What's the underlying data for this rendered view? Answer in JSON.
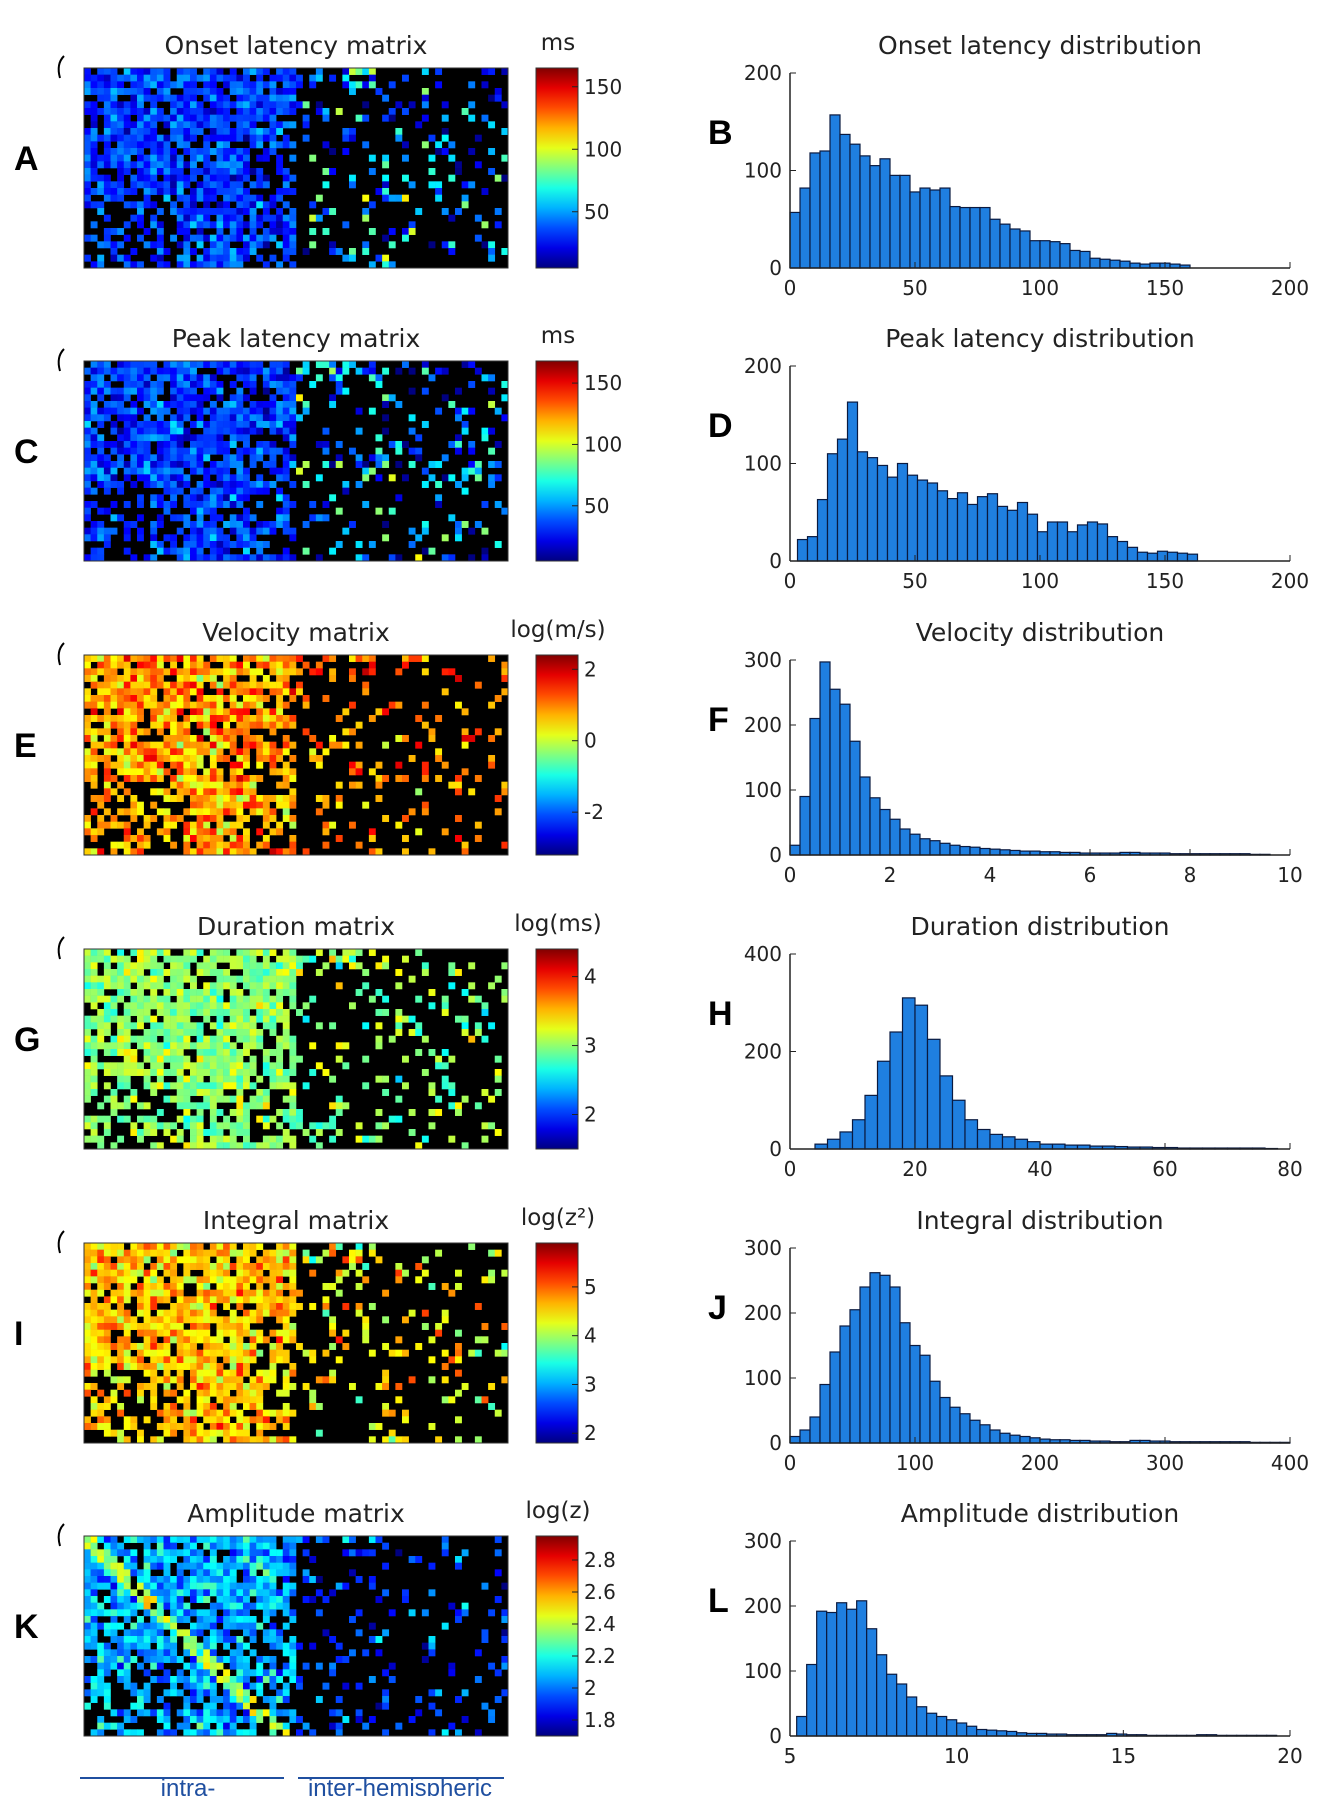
{
  "footer": {
    "left": "intra-",
    "right": "inter-hemispheric"
  },
  "chart_data": [
    {
      "type": "heatmap",
      "letter": "A",
      "title": "Onset latency matrix",
      "unit": "ms",
      "variant": "latency",
      "cmin": 5,
      "cmax": 165,
      "cticks": [
        50,
        100,
        150
      ]
    },
    {
      "type": "bar",
      "letter": "B",
      "title": "Onset latency distribution",
      "xlim": [
        0,
        200
      ],
      "ylim": [
        0,
        200
      ],
      "xticks": [
        0,
        50,
        100,
        150,
        200
      ],
      "yticks": [
        0,
        100,
        200
      ],
      "bin_start": 0,
      "bin_width": 4,
      "values": [
        57,
        82,
        118,
        120,
        157,
        137,
        127,
        115,
        105,
        112,
        95,
        95,
        78,
        82,
        80,
        82,
        63,
        62,
        62,
        62,
        50,
        45,
        40,
        38,
        28,
        28,
        27,
        25,
        18,
        17,
        10,
        9,
        8,
        7,
        5,
        4,
        5,
        5,
        4,
        3
      ]
    },
    {
      "type": "heatmap",
      "letter": "C",
      "title": "Peak latency matrix",
      "unit": "ms",
      "variant": "latency",
      "cmin": 5,
      "cmax": 168,
      "cticks": [
        50,
        100,
        150
      ]
    },
    {
      "type": "bar",
      "letter": "D",
      "title": "Peak latency distribution",
      "xlim": [
        0,
        200
      ],
      "ylim": [
        0,
        200
      ],
      "xticks": [
        0,
        50,
        100,
        150,
        200
      ],
      "yticks": [
        0,
        100,
        200
      ],
      "bin_start": 3,
      "bin_width": 4,
      "values": [
        22,
        25,
        63,
        110,
        125,
        163,
        112,
        106,
        98,
        86,
        100,
        88,
        83,
        80,
        72,
        64,
        70,
        58,
        66,
        69,
        56,
        52,
        60,
        48,
        30,
        40,
        40,
        30,
        37,
        40,
        38,
        25,
        20,
        14,
        9,
        8,
        10,
        9,
        8,
        7
      ]
    },
    {
      "type": "heatmap",
      "letter": "E",
      "title": "Velocity matrix",
      "unit": "log(m/s)",
      "variant": "velocity",
      "cmin": -3.2,
      "cmax": 2.4,
      "cticks": [
        -2,
        0,
        2
      ]
    },
    {
      "type": "bar",
      "letter": "F",
      "title": "Velocity distribution",
      "xlim": [
        0,
        10
      ],
      "ylim": [
        0,
        300
      ],
      "xticks": [
        0,
        2,
        4,
        6,
        8,
        10
      ],
      "yticks": [
        0,
        100,
        200,
        300
      ],
      "bin_start": 0,
      "bin_width": 0.2,
      "values": [
        15,
        90,
        210,
        297,
        255,
        232,
        175,
        120,
        88,
        70,
        55,
        40,
        32,
        25,
        22,
        18,
        15,
        13,
        12,
        10,
        9,
        8,
        7,
        6,
        6,
        5,
        5,
        4,
        4,
        3,
        3,
        3,
        3,
        4,
        4,
        3,
        3,
        3,
        2,
        2,
        2,
        2,
        2,
        2,
        2,
        2,
        1,
        1
      ]
    },
    {
      "type": "heatmap",
      "letter": "G",
      "title": "Duration matrix",
      "unit": "log(ms)",
      "variant": "duration",
      "cmin": 1.5,
      "cmax": 4.4,
      "cticks": [
        2,
        3,
        4
      ]
    },
    {
      "type": "bar",
      "letter": "H",
      "title": "Duration distribution",
      "xlim": [
        0,
        80
      ],
      "ylim": [
        0,
        400
      ],
      "xticks": [
        0,
        20,
        40,
        60,
        80
      ],
      "yticks": [
        0,
        200,
        400
      ],
      "bin_start": 2,
      "bin_width": 2,
      "values": [
        0,
        10,
        20,
        35,
        60,
        110,
        180,
        240,
        310,
        295,
        225,
        150,
        100,
        60,
        40,
        30,
        25,
        20,
        15,
        10,
        10,
        8,
        8,
        6,
        6,
        5,
        4,
        4,
        3,
        3,
        2,
        2,
        2,
        2,
        2,
        2,
        2,
        1
      ]
    },
    {
      "type": "heatmap",
      "letter": "I",
      "title": "Integral matrix",
      "unit": "log(z²)",
      "variant": "integral",
      "cmin": 1.8,
      "cmax": 5.9,
      "cticks": [
        2,
        3,
        4,
        5
      ]
    },
    {
      "type": "bar",
      "letter": "J",
      "title": "Integral distribution",
      "xlim": [
        0,
        400
      ],
      "ylim": [
        0,
        300
      ],
      "xticks": [
        0,
        100,
        200,
        300,
        400
      ],
      "yticks": [
        0,
        100,
        200,
        300
      ],
      "bin_start": 0,
      "bin_width": 8,
      "values": [
        10,
        20,
        40,
        90,
        140,
        180,
        205,
        240,
        262,
        258,
        240,
        185,
        150,
        135,
        95,
        70,
        55,
        45,
        35,
        28,
        20,
        15,
        12,
        10,
        8,
        6,
        5,
        5,
        4,
        4,
        3,
        3,
        2,
        2,
        4,
        4,
        3,
        3,
        2,
        2,
        2,
        2,
        2,
        2,
        2,
        2,
        1,
        1,
        1,
        1
      ]
    },
    {
      "type": "heatmap",
      "letter": "K",
      "title": "Amplitude matrix",
      "unit": "log(z)",
      "variant": "amplitude",
      "cmin": 1.7,
      "cmax": 2.95,
      "cticks": [
        1.8,
        2,
        2.2,
        2.4,
        2.6,
        2.8
      ]
    },
    {
      "type": "bar",
      "letter": "L",
      "title": "Amplitude distribution",
      "xlim": [
        5,
        20
      ],
      "ylim": [
        0,
        300
      ],
      "xticks": [
        5,
        10,
        15,
        20
      ],
      "yticks": [
        0,
        100,
        200,
        300
      ],
      "bin_start": 5.2,
      "bin_width": 0.3,
      "values": [
        30,
        110,
        192,
        190,
        205,
        195,
        208,
        165,
        125,
        95,
        80,
        60,
        45,
        35,
        30,
        25,
        20,
        15,
        10,
        9,
        8,
        7,
        5,
        4,
        4,
        3,
        3,
        2,
        2,
        2,
        2,
        4,
        3,
        2,
        2,
        1,
        1,
        1,
        1,
        1,
        2,
        2,
        1,
        1,
        1,
        1,
        1,
        1
      ]
    }
  ]
}
